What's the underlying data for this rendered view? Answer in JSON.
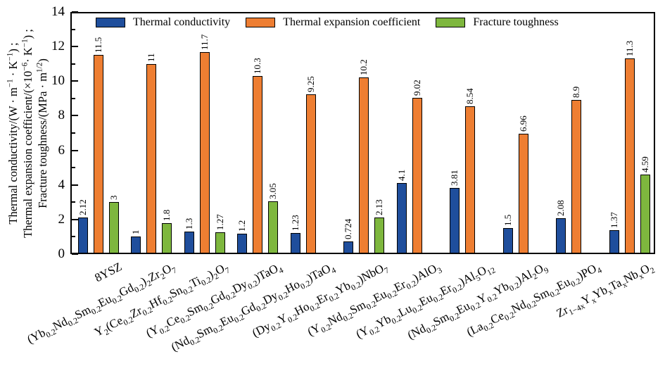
{
  "chart_data": {
    "type": "bar",
    "categories": [
      "8YSZ",
      "(Yb~0.2~Nd~0.2~Sm~0.2~Eu~0.2~Gd~0.2~)~2~Zr~2~O~7~",
      "Y~2~(Ce~0.2~Zr~0.2~Hf~0.2~Sn~0.2~Ti~0.2~)~2~O~7~",
      "(Y~0.2~Ce~0.2~Sm~0.2~Gd~0.2~Dy~0.2~)TaO~4~",
      "(Nd~0.2~Sm~0.2~Eu~0.2~Gd~0.2~Dy~0.2~Ho~0.2~)TaO~4~",
      "(Dy~0.2~Y~0.2~Ho~0.2~Er~0.2~Yb~0.2~)NbO~7~",
      "(Y~0.2~Nd~0.2~Sm~0.2~Eu~0.2~Er~0.2~)AlO~3~",
      "(Y~0.2~Yb~0.2~Lu~0.2~Eu~0.2~Er~0.2~)Al~5~O~12~",
      "(Nd~0.2~Sm~0.2~Eu~0.2~Y~0.2~Yb~0.2~)Al~2~O~9~",
      "(La~0.2~Ce~0.2~Nd~0.2~Sm~0.2~Eu~0.2~)PO~4~",
      "Zr~1−4x~Y~x~Yb~x~Ta~x~Nb~x~O~2~"
    ],
    "series": [
      {
        "name": "Thermal conductivity",
        "color": "#1F4E9C",
        "values": [
          2.12,
          1,
          1.3,
          1.2,
          1.23,
          0.724,
          4.1,
          3.81,
          1.5,
          2.08,
          1.37
        ]
      },
      {
        "name": "Thermal expansion coefficient",
        "color": "#EE7E32",
        "values": [
          11.5,
          11,
          11.7,
          10.3,
          9.25,
          10.2,
          9.02,
          8.54,
          6.96,
          8.9,
          11.3
        ]
      },
      {
        "name": "Fracture toughness",
        "color": "#7EB73E",
        "values": [
          3,
          1.8,
          1.27,
          3.05,
          null,
          2.13,
          null,
          null,
          null,
          null,
          4.59
        ]
      }
    ],
    "ylim": [
      0,
      14
    ],
    "yticks": [
      0,
      2,
      4,
      6,
      8,
      10,
      12,
      14
    ],
    "yticks_minor": [
      1,
      3,
      5,
      7,
      9,
      11,
      13
    ],
    "ylabel_lines": [
      "Thermal conductivity/(W · m^−1^ · K^−1^) ;",
      "Thermal expansion coefficient/(×10^−6^· K^−1^) ;",
      "Fracture toughness/(MPa · m^1/2^)"
    ],
    "value_labels_rotated": true,
    "grid": false,
    "legend_position": "top-inside",
    "xlabel": ""
  }
}
